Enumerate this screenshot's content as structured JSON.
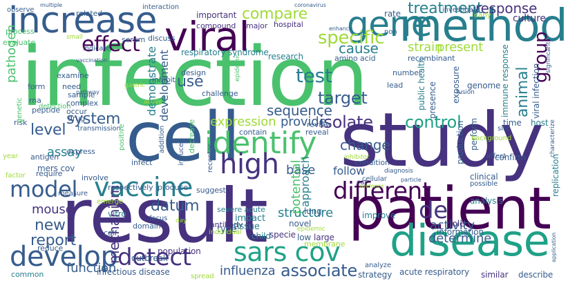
{
  "palette": [
    "#440154",
    "#46327e",
    "#365c8d",
    "#277f8e",
    "#1fa187",
    "#4ac16d",
    "#a0da39",
    "#fde725"
  ],
  "words": [
    {
      "text": "infection",
      "color": "#4ac16d",
      "dir": "h"
    },
    {
      "text": "study",
      "color": "#46327e",
      "dir": "h"
    },
    {
      "text": "cell",
      "color": "#365c8d",
      "dir": "h"
    },
    {
      "text": "result",
      "color": "#46327e",
      "dir": "h"
    },
    {
      "text": "patient",
      "color": "#440154",
      "dir": "h"
    },
    {
      "text": "method",
      "color": "#277f8e",
      "dir": "h"
    },
    {
      "text": "viral",
      "color": "#440154",
      "dir": "h"
    },
    {
      "text": "disease",
      "color": "#1fa187",
      "dir": "h"
    },
    {
      "text": "increase",
      "color": "#365c8d",
      "dir": "h"
    },
    {
      "text": "gene",
      "color": "#277f8e",
      "dir": "h"
    },
    {
      "text": "identify",
      "color": "#4ac16d",
      "dir": "h"
    },
    {
      "text": "high",
      "color": "#46327e",
      "dir": "h"
    },
    {
      "text": "vaccine",
      "color": "#277f8e",
      "dir": "h"
    },
    {
      "text": "develop",
      "color": "#365c8d",
      "dir": "h"
    },
    {
      "text": "detect",
      "color": "#46327e",
      "dir": "h"
    },
    {
      "text": "sars cov",
      "color": "#1fa187",
      "dir": "h"
    },
    {
      "text": "different",
      "color": "#440154",
      "dir": "h"
    },
    {
      "text": "model",
      "color": "#365c8d",
      "dir": "h"
    },
    {
      "text": "effect",
      "color": "#440154",
      "dir": "h"
    },
    {
      "text": "test",
      "color": "#277f8e",
      "dir": "h"
    },
    {
      "text": "specific",
      "color": "#a0da39",
      "dir": "h"
    },
    {
      "text": "compare",
      "color": "#a0da39",
      "dir": "h"
    },
    {
      "text": "treatment",
      "color": "#277f8e",
      "dir": "h"
    },
    {
      "text": "response",
      "color": "#46327e",
      "dir": "h"
    },
    {
      "text": "target",
      "color": "#365c8d",
      "dir": "h"
    },
    {
      "text": "group",
      "color": "#440154",
      "dir": "v"
    },
    {
      "text": "control",
      "color": "#1fa187",
      "dir": "h"
    },
    {
      "text": "isolate",
      "color": "#46327e",
      "dir": "h"
    },
    {
      "text": "associate",
      "color": "#365c8d",
      "dir": "h"
    },
    {
      "text": "de",
      "color": "#46327e",
      "dir": "h"
    },
    {
      "text": "cause",
      "color": "#277f8e",
      "dir": "h"
    },
    {
      "text": "strain",
      "color": "#a0da39",
      "dir": "h"
    },
    {
      "text": "present",
      "color": "#a0da39",
      "dir": "h"
    },
    {
      "text": "change",
      "color": "#365c8d",
      "dir": "h"
    },
    {
      "text": "sequence",
      "color": "#365c8d",
      "dir": "h"
    },
    {
      "text": "pathogen",
      "color": "#4ac16d",
      "dir": "v"
    },
    {
      "text": "level",
      "color": "#365c8d",
      "dir": "h"
    },
    {
      "text": "system",
      "color": "#365c8d",
      "dir": "h"
    },
    {
      "text": "use",
      "color": "#365c8d",
      "dir": "h"
    },
    {
      "text": "new",
      "color": "#365c8d",
      "dir": "h"
    },
    {
      "text": "report",
      "color": "#365c8d",
      "dir": "h"
    },
    {
      "text": "mouse",
      "color": "#46327e",
      "dir": "h"
    },
    {
      "text": "assay",
      "color": "#277f8e",
      "dir": "h"
    },
    {
      "text": "expression",
      "color": "#a0da39",
      "dir": "h"
    },
    {
      "text": "provide",
      "color": "#365c8d",
      "dir": "h"
    },
    {
      "text": "development",
      "color": "#365c8d",
      "dir": "v"
    },
    {
      "text": "demonstrate",
      "color": "#277f8e",
      "dir": "v"
    },
    {
      "text": "animal",
      "color": "#277f8e",
      "dir": "v"
    },
    {
      "text": "influenza",
      "color": "#365c8d",
      "dir": "h"
    },
    {
      "text": "function",
      "color": "#365c8d",
      "dir": "h"
    },
    {
      "text": "activity",
      "color": "#365c8d",
      "dir": "h"
    },
    {
      "text": "determine",
      "color": "#365c8d",
      "dir": "h"
    },
    {
      "text": "structure",
      "color": "#277f8e",
      "dir": "h"
    },
    {
      "text": "follow",
      "color": "#365c8d",
      "dir": "h"
    },
    {
      "text": "base",
      "color": "#365c8d",
      "dir": "h"
    },
    {
      "text": "approach",
      "color": "#277f8e",
      "dir": "v"
    },
    {
      "text": "potential",
      "color": "#4ac16d",
      "dir": "v"
    },
    {
      "text": "mechanism",
      "color": "#46327e",
      "dir": "v"
    },
    {
      "text": "datum",
      "color": "#365c8d",
      "dir": "h"
    },
    {
      "text": "infectious disease",
      "color": "#365c8d",
      "dir": "h"
    },
    {
      "text": "respiratory syndrome",
      "color": "#277f8e",
      "dir": "h"
    },
    {
      "text": "research",
      "color": "#277f8e",
      "dir": "h"
    },
    {
      "text": "immune response",
      "color": "#277f8e",
      "dir": "v"
    },
    {
      "text": "amino acid",
      "color": "#365c8d",
      "dir": "h"
    },
    {
      "text": "recombinant",
      "color": "#365c8d",
      "dir": "h"
    },
    {
      "text": "public health",
      "color": "#277f8e",
      "dir": "v"
    },
    {
      "text": "acute respiratory",
      "color": "#365c8d",
      "dir": "h"
    },
    {
      "text": "severe acute",
      "color": "#277f8e",
      "dir": "h"
    },
    {
      "text": "mers cov",
      "color": "#365c8d",
      "dir": "h"
    },
    {
      "text": "outbreak",
      "color": "#365c8d",
      "dir": "h"
    },
    {
      "text": "population",
      "color": "#46327e",
      "dir": "h"
    },
    {
      "text": "similar",
      "color": "#46327e",
      "dir": "h"
    },
    {
      "text": "describe",
      "color": "#365c8d",
      "dir": "h"
    },
    {
      "text": "strategy",
      "color": "#365c8d",
      "dir": "h"
    },
    {
      "text": "common",
      "color": "#277f8e",
      "dir": "h"
    },
    {
      "text": "reduce",
      "color": "#365c8d",
      "dir": "h"
    },
    {
      "text": "calf",
      "color": "#365c8d",
      "dir": "h"
    },
    {
      "text": "domain",
      "color": "#365c8d",
      "dir": "h"
    },
    {
      "text": "antibody",
      "color": "#46327e",
      "dir": "h"
    },
    {
      "text": "impact",
      "color": "#277f8e",
      "dir": "h"
    },
    {
      "text": "tissue",
      "color": "#277f8e",
      "dir": "h"
    },
    {
      "text": "specie",
      "color": "#46327e",
      "dir": "h"
    },
    {
      "text": "novel",
      "color": "#365c8d",
      "dir": "h"
    },
    {
      "text": "type",
      "color": "#365c8d",
      "dir": "h"
    },
    {
      "text": "child",
      "color": "#277f8e",
      "dir": "h"
    },
    {
      "text": "low",
      "color": "#365c8d",
      "dir": "h"
    },
    {
      "text": "large",
      "color": "#46327e",
      "dir": "h"
    },
    {
      "text": "lung",
      "color": "#365c8d",
      "dir": "h"
    },
    {
      "text": "role",
      "color": "#46327e",
      "dir": "h"
    },
    {
      "text": "information",
      "color": "#365c8d",
      "dir": "h"
    },
    {
      "text": "improve",
      "color": "#277f8e",
      "dir": "h"
    },
    {
      "text": "analysis",
      "color": "#277f8e",
      "dir": "h"
    },
    {
      "text": "clinical",
      "color": "#365c8d",
      "dir": "h"
    },
    {
      "text": "possible",
      "color": "#365c8d",
      "dir": "h"
    },
    {
      "text": "replication",
      "color": "#277f8e",
      "dir": "v"
    },
    {
      "text": "production",
      "color": "#365c8d",
      "dir": "v"
    },
    {
      "text": "confirm",
      "color": "#365c8d",
      "dir": "h"
    },
    {
      "text": "perform",
      "color": "#365c8d",
      "dir": "v"
    },
    {
      "text": "presence",
      "color": "#365c8d",
      "dir": "v"
    },
    {
      "text": "genome",
      "color": "#365c8d",
      "dir": "h"
    },
    {
      "text": "exposure",
      "color": "#365c8d",
      "dir": "v"
    },
    {
      "text": "viral infection",
      "color": "#365c8d",
      "dir": "v"
    },
    {
      "text": "time",
      "color": "#365c8d",
      "dir": "h"
    },
    {
      "text": "host",
      "color": "#277f8e",
      "dir": "h"
    },
    {
      "text": "culture",
      "color": "#46327e",
      "dir": "h"
    },
    {
      "text": "rate",
      "color": "#365c8d",
      "dir": "h"
    },
    {
      "text": "investigate",
      "color": "#365c8d",
      "dir": "h"
    },
    {
      "text": "observe",
      "color": "#365c8d",
      "dir": "h"
    },
    {
      "text": "related",
      "color": "#365c8d",
      "dir": "h"
    },
    {
      "text": "interaction",
      "color": "#365c8d",
      "dir": "h"
    },
    {
      "text": "important",
      "color": "#46327e",
      "dir": "h"
    },
    {
      "text": "compound",
      "color": "#46327e",
      "dir": "h"
    },
    {
      "text": "major",
      "color": "#46327e",
      "dir": "h"
    },
    {
      "text": "hospital",
      "color": "#46327e",
      "dir": "h"
    },
    {
      "text": "indicate",
      "color": "#365c8d",
      "dir": "h"
    },
    {
      "text": "serum",
      "color": "#365c8d",
      "dir": "h"
    },
    {
      "text": "discuss",
      "color": "#365c8d",
      "dir": "h"
    },
    {
      "text": "examine",
      "color": "#365c8d",
      "dir": "h"
    },
    {
      "text": "need",
      "color": "#365c8d",
      "dir": "h"
    },
    {
      "text": "sample",
      "color": "#365c8d",
      "dir": "h"
    },
    {
      "text": "complex",
      "color": "#365c8d",
      "dir": "h"
    },
    {
      "text": "form",
      "color": "#365c8d",
      "dir": "h"
    },
    {
      "text": "rna",
      "color": "#365c8d",
      "dir": "h"
    },
    {
      "text": "peptide",
      "color": "#365c8d",
      "dir": "h"
    },
    {
      "text": "risk",
      "color": "#365c8d",
      "dir": "h"
    },
    {
      "text": "antigen",
      "color": "#365c8d",
      "dir": "h"
    },
    {
      "text": "transmission",
      "color": "#365c8d",
      "dir": "h"
    },
    {
      "text": "require",
      "color": "#365c8d",
      "dir": "h"
    },
    {
      "text": "involve",
      "color": "#365c8d",
      "dir": "h"
    },
    {
      "text": "respectively",
      "color": "#365c8d",
      "dir": "h"
    },
    {
      "text": "produce",
      "color": "#365c8d",
      "dir": "h"
    },
    {
      "text": "suggest",
      "color": "#365c8d",
      "dir": "h"
    },
    {
      "text": "measure",
      "color": "#365c8d",
      "dir": "h"
    },
    {
      "text": "express",
      "color": "#365c8d",
      "dir": "h"
    },
    {
      "text": "infect",
      "color": "#365c8d",
      "dir": "h"
    },
    {
      "text": "design",
      "color": "#365c8d",
      "dir": "h"
    },
    {
      "text": "challenge",
      "color": "#365c8d",
      "dir": "h"
    },
    {
      "text": "contain",
      "color": "#365c8d",
      "dir": "h"
    },
    {
      "text": "condition",
      "color": "#365c8d",
      "dir": "h"
    },
    {
      "text": "cellular",
      "color": "#365c8d",
      "dir": "h"
    },
    {
      "text": "reveal",
      "color": "#365c8d",
      "dir": "h"
    },
    {
      "text": "review",
      "color": "#365c8d",
      "dir": "h"
    },
    {
      "text": "lead",
      "color": "#365c8d",
      "dir": "h"
    },
    {
      "text": "number",
      "color": "#365c8d",
      "dir": "h"
    },
    {
      "text": "non",
      "color": "#365c8d",
      "dir": "h"
    },
    {
      "text": "enhance",
      "color": "#365c8d",
      "dir": "h"
    },
    {
      "text": "diagnosis",
      "color": "#365c8d",
      "dir": "h"
    },
    {
      "text": "particle",
      "color": "#365c8d",
      "dir": "h"
    },
    {
      "text": "affect",
      "color": "#365c8d",
      "dir": "h"
    },
    {
      "text": "focus",
      "color": "#365c8d",
      "dir": "h"
    },
    {
      "text": "cat",
      "color": "#365c8d",
      "dir": "h"
    },
    {
      "text": "analyze",
      "color": "#365c8d",
      "dir": "h"
    },
    {
      "text": "site",
      "color": "#365c8d",
      "dir": "h"
    },
    {
      "text": "multiple",
      "color": "#365c8d",
      "dir": "h"
    },
    {
      "text": "coronavirus",
      "color": "#365c8d",
      "dir": "h"
    },
    {
      "text": "fusion",
      "color": "#365c8d",
      "dir": "h"
    },
    {
      "text": "inhibit",
      "color": "#365c8d",
      "dir": "h"
    },
    {
      "text": "vaccination",
      "color": "#365c8d",
      "dir": "h"
    },
    {
      "text": "pathway",
      "color": "#365c8d",
      "dir": "h"
    },
    {
      "text": "drug",
      "color": "#365c8d",
      "dir": "h"
    },
    {
      "text": "occur",
      "color": "#365c8d",
      "dir": "h"
    },
    {
      "text": "epidemic",
      "color": "#4ac16d",
      "dir": "v"
    },
    {
      "text": "positive",
      "color": "#4ac16d",
      "dir": "v"
    },
    {
      "text": "decrease",
      "color": "#4ac16d",
      "dir": "v"
    },
    {
      "text": "receptor",
      "color": "#365c8d",
      "dir": "v"
    },
    {
      "text": "induce",
      "color": "#365c8d",
      "dir": "v"
    },
    {
      "text": "addition",
      "color": "#365c8d",
      "dir": "v"
    },
    {
      "text": "significant",
      "color": "#365c8d",
      "dir": "v"
    },
    {
      "text": "characterize",
      "color": "#365c8d",
      "dir": "v"
    },
    {
      "text": "application",
      "color": "#365c8d",
      "dir": "v"
    },
    {
      "text": "genetic",
      "color": "#4ac16d",
      "dir": "v"
    },
    {
      "text": "detection",
      "color": "#4ac16d",
      "dir": "h"
    },
    {
      "text": "process",
      "color": "#4ac16d",
      "dir": "h"
    },
    {
      "text": "evaluate",
      "color": "#4ac16d",
      "dir": "h"
    },
    {
      "text": "vitro",
      "color": "#277f8e",
      "dir": "h"
    },
    {
      "text": "year",
      "color": "#a0da39",
      "dir": "h"
    },
    {
      "text": "factor",
      "color": "#a0da39",
      "dir": "h"
    },
    {
      "text": "emerge",
      "color": "#a0da39",
      "dir": "h"
    },
    {
      "text": "individual",
      "color": "#a0da39",
      "dir": "h"
    },
    {
      "text": "spread",
      "color": "#a0da39",
      "dir": "h"
    },
    {
      "text": "membrane",
      "color": "#a0da39",
      "dir": "h"
    },
    {
      "text": "early",
      "color": "#a0da39",
      "dir": "h"
    },
    {
      "text": "background",
      "color": "#a0da39",
      "dir": "h"
    },
    {
      "text": "inhibitor",
      "color": "#a0da39",
      "dir": "h"
    },
    {
      "text": "epidemic",
      "color": "#a0da39",
      "dir": "h"
    },
    {
      "text": "small",
      "color": "#a0da39",
      "dir": "h"
    },
    {
      "text": "gastric",
      "color": "#a0da39",
      "dir": "h"
    },
    {
      "text": "active",
      "color": "#a0da39",
      "dir": "h"
    },
    {
      "text": "day",
      "color": "#a0da39",
      "dir": "h"
    },
    {
      "text": "evidence",
      "color": "#a0da39",
      "dir": "h"
    }
  ]
}
